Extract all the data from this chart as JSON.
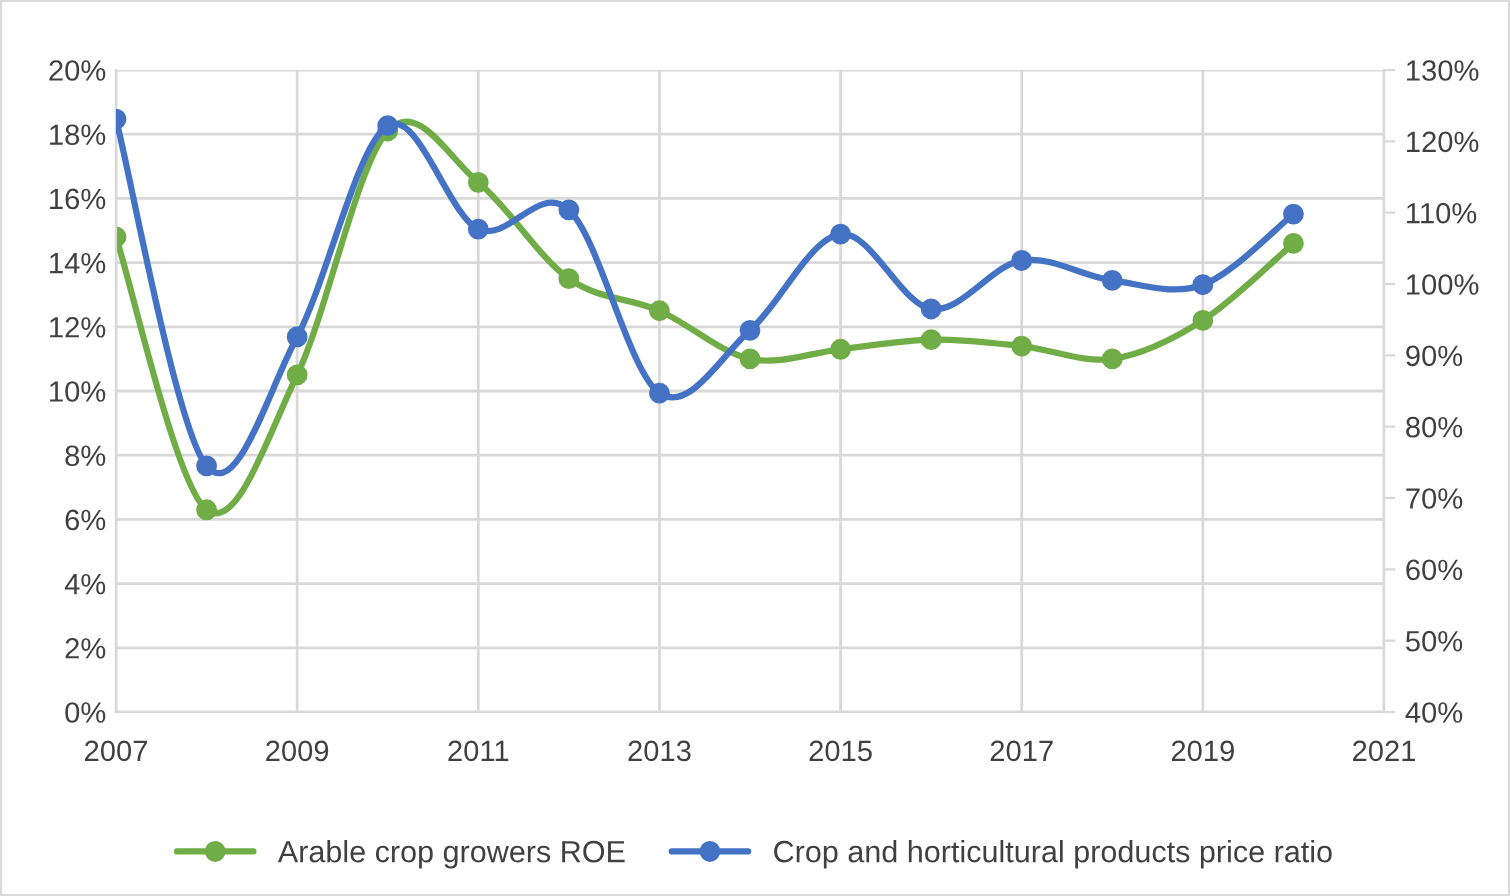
{
  "chart_data": {
    "type": "line",
    "x": [
      2007,
      2008,
      2009,
      2010,
      2011,
      2012,
      2013,
      2014,
      2015,
      2016,
      2017,
      2018,
      2019,
      2020
    ],
    "series": [
      {
        "name": "Arable crop growers ROE",
        "color": "#70ad47",
        "values": [
          14.8,
          6.3,
          10.5,
          18.1,
          16.5,
          13.5,
          12.5,
          11.0,
          11.3,
          11.6,
          11.4,
          11.0,
          12.2,
          14.6
        ]
      },
      {
        "name": "Crop and horticultural products price ratio",
        "color": "#4472c4",
        "axis": "y2",
        "values": [
          123.1,
          74.5,
          92.6,
          122.2,
          107.7,
          110.4,
          84.7,
          93.5,
          107.0,
          96.5,
          103.3,
          100.5,
          99.9,
          109.8
        ]
      }
    ],
    "xlim": [
      2007,
      2021
    ],
    "xticks": [
      2007,
      2009,
      2011,
      2013,
      2015,
      2017,
      2019,
      2021
    ],
    "ylim": [
      0,
      20
    ],
    "yticks": [
      {
        "value": 0,
        "label": "0%"
      },
      {
        "value": 2,
        "label": "2%"
      },
      {
        "value": 4,
        "label": "4%"
      },
      {
        "value": 6,
        "label": "6%"
      },
      {
        "value": 8,
        "label": "8%"
      },
      {
        "value": 10,
        "label": "10%"
      },
      {
        "value": 12,
        "label": "12%"
      },
      {
        "value": 14,
        "label": "14%"
      },
      {
        "value": 16,
        "label": "16%"
      },
      {
        "value": 18,
        "label": "18%"
      },
      {
        "value": 20,
        "label": "20%"
      }
    ],
    "y2lim": [
      40,
      130
    ],
    "y2ticks": [
      {
        "value": 40,
        "label": "40%"
      },
      {
        "value": 50,
        "label": "50%"
      },
      {
        "value": 60,
        "label": "60%"
      },
      {
        "value": 70,
        "label": "70%"
      },
      {
        "value": 80,
        "label": "80%"
      },
      {
        "value": 90,
        "label": "90%"
      },
      {
        "value": 100,
        "label": "100%"
      },
      {
        "value": 110,
        "label": "110%"
      },
      {
        "value": 120,
        "label": "120%"
      },
      {
        "value": 130,
        "label": "130%"
      }
    ],
    "grid": true,
    "legend": "bottom",
    "marker": "circle",
    "line_style": "solid"
  }
}
